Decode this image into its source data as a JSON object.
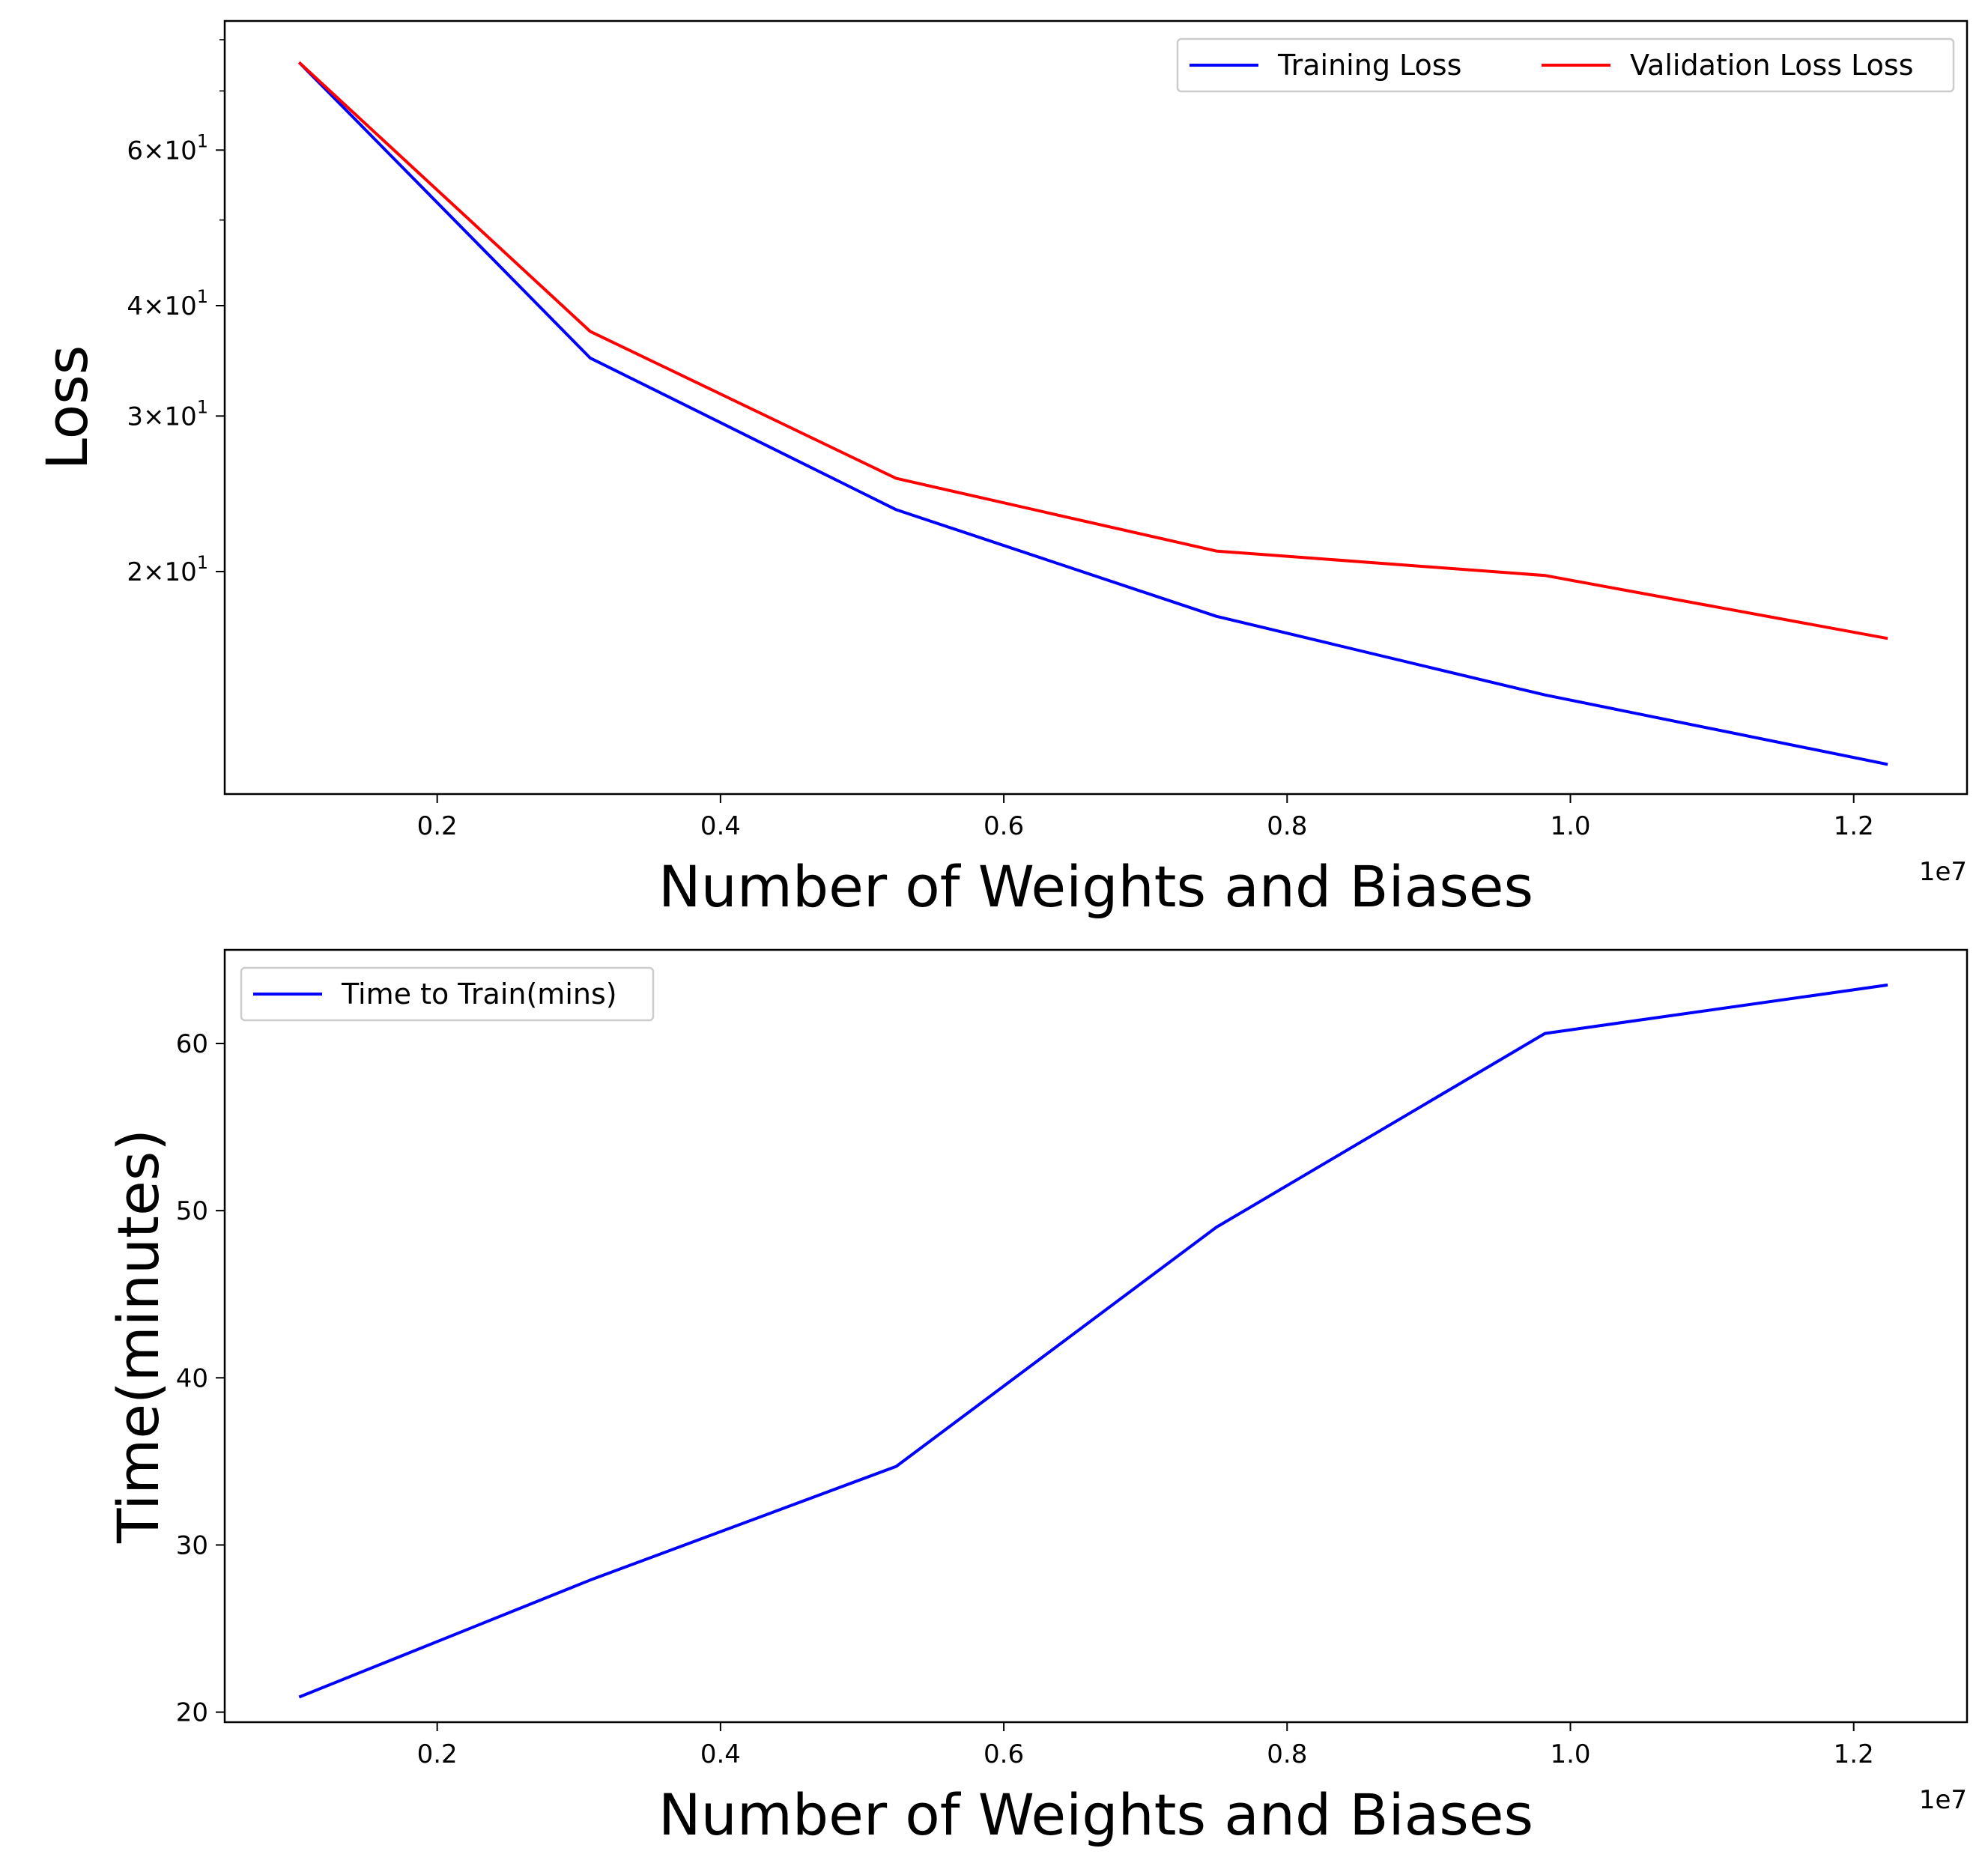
{
  "chart_data": [
    {
      "type": "line",
      "xlabel": "Number of Weights and Biases",
      "ylabel": "Loss",
      "x_offset_label": "1e7",
      "yscale": "log",
      "xlim": [
        0.05,
        1.28
      ],
      "ylim": [
        11.2,
        84.0
      ],
      "grid": false,
      "legend_position": "top-right",
      "x_ticks": [
        0.2,
        0.4,
        0.6,
        0.8,
        1.0,
        1.2
      ],
      "x_tick_labels": [
        "0.2",
        "0.4",
        "0.6",
        "0.8",
        "1.0",
        "1.2"
      ],
      "y_ticks": [
        20,
        30,
        40,
        60
      ],
      "y_tick_labels": [
        [
          "2",
          "1"
        ],
        [
          "3",
          "1"
        ],
        [
          "4",
          "1"
        ],
        [
          "6",
          "1"
        ]
      ],
      "y_minor_ticks": [
        50,
        70,
        80
      ],
      "x": [
        0.1025,
        0.308,
        0.524,
        0.75,
        0.982,
        1.224
      ],
      "series": [
        {
          "name": "Training Loss",
          "color": "#0000ff",
          "values": [
            75.4,
            34.9,
            23.5,
            17.8,
            14.5,
            12.1
          ]
        },
        {
          "name": "Validation Loss Loss",
          "color": "#ff0000",
          "values": [
            75.4,
            37.4,
            25.5,
            21.1,
            19.8,
            16.8
          ]
        }
      ]
    },
    {
      "type": "line",
      "xlabel": "Number of Weights and Biases",
      "ylabel": "Time(minutes)",
      "x_offset_label": "1e7",
      "yscale": "linear",
      "xlim": [
        0.05,
        1.28
      ],
      "ylim": [
        19.4,
        65.6
      ],
      "grid": false,
      "legend_position": "top-left",
      "x_ticks": [
        0.2,
        0.4,
        0.6,
        0.8,
        1.0,
        1.2
      ],
      "x_tick_labels": [
        "0.2",
        "0.4",
        "0.6",
        "0.8",
        "1.0",
        "1.2"
      ],
      "y_ticks": [
        20,
        30,
        40,
        50,
        60
      ],
      "y_tick_labels": [
        "20",
        "30",
        "40",
        "50",
        "60"
      ],
      "x": [
        0.1025,
        0.308,
        0.524,
        0.75,
        0.982,
        1.224
      ],
      "series": [
        {
          "name": "Time to Train(mins)",
          "color": "#0000ff",
          "values": [
            20.9,
            27.9,
            34.7,
            49.0,
            60.6,
            63.5
          ]
        }
      ]
    }
  ]
}
